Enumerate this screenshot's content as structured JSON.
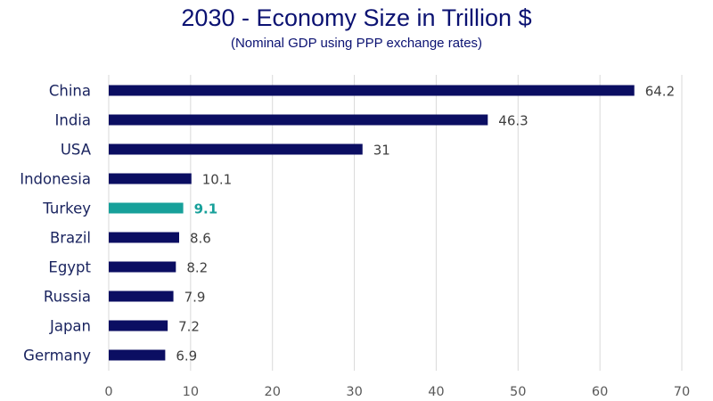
{
  "chart_data": {
    "type": "bar",
    "orientation": "horizontal",
    "title": "2030 - Economy Size in Trillion $",
    "subtitle": "(Nominal GDP using PPP exchange rates)",
    "categories": [
      "China",
      "India",
      "USA",
      "Indonesia",
      "Turkey",
      "Brazil",
      "Egypt",
      "Russia",
      "Japan",
      "Germany"
    ],
    "values": [
      64.2,
      46.3,
      31,
      10.1,
      9.1,
      8.6,
      8.2,
      7.9,
      7.2,
      6.9
    ],
    "value_labels": [
      "64.2",
      "46.3",
      "31",
      "10.1",
      "9.1",
      "8.6",
      "8.2",
      "7.9",
      "7.2",
      "6.9"
    ],
    "highlight_category": "Turkey",
    "xlim": [
      0,
      70
    ],
    "x_ticks": [
      0,
      10,
      20,
      30,
      40,
      50,
      60,
      70
    ],
    "grid": true,
    "legend": "none",
    "colors": {
      "bar": "#0b0e62",
      "highlight": "#17a09a",
      "title": "#0b1272"
    }
  }
}
